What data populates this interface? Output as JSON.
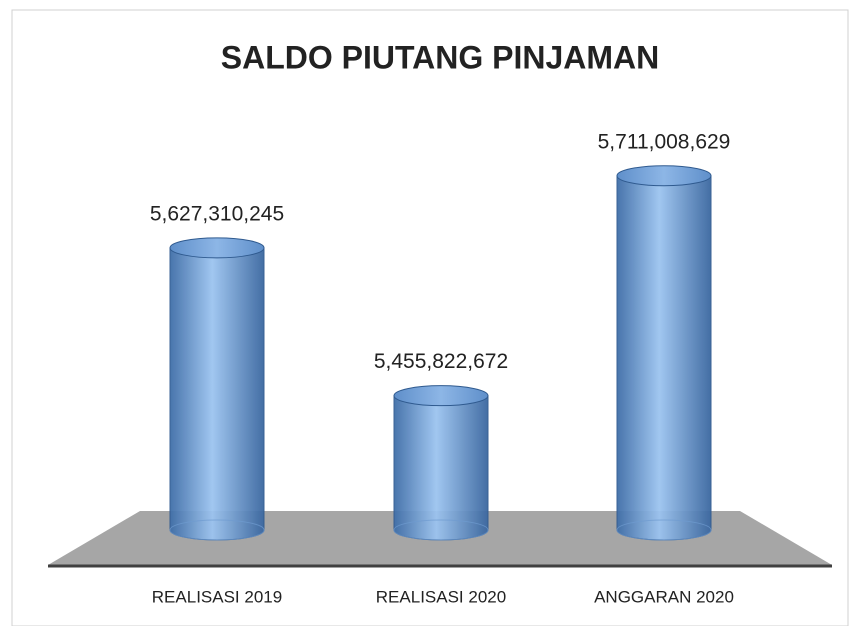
{
  "chart_data": {
    "type": "bar",
    "title": "SALDO PIUTANG PINJAMAN",
    "categories": [
      "REALISASI 2019",
      "REALISASI 2020",
      "ANGGARAN 2020"
    ],
    "values": [
      5627310245,
      5455822672,
      5711008629
    ],
    "value_labels": [
      "5,627,310,245",
      "5,455,822,672",
      "5,711,008,629"
    ],
    "color": "#4f81bd",
    "ylim": [
      5300000000,
      5800000000
    ]
  }
}
